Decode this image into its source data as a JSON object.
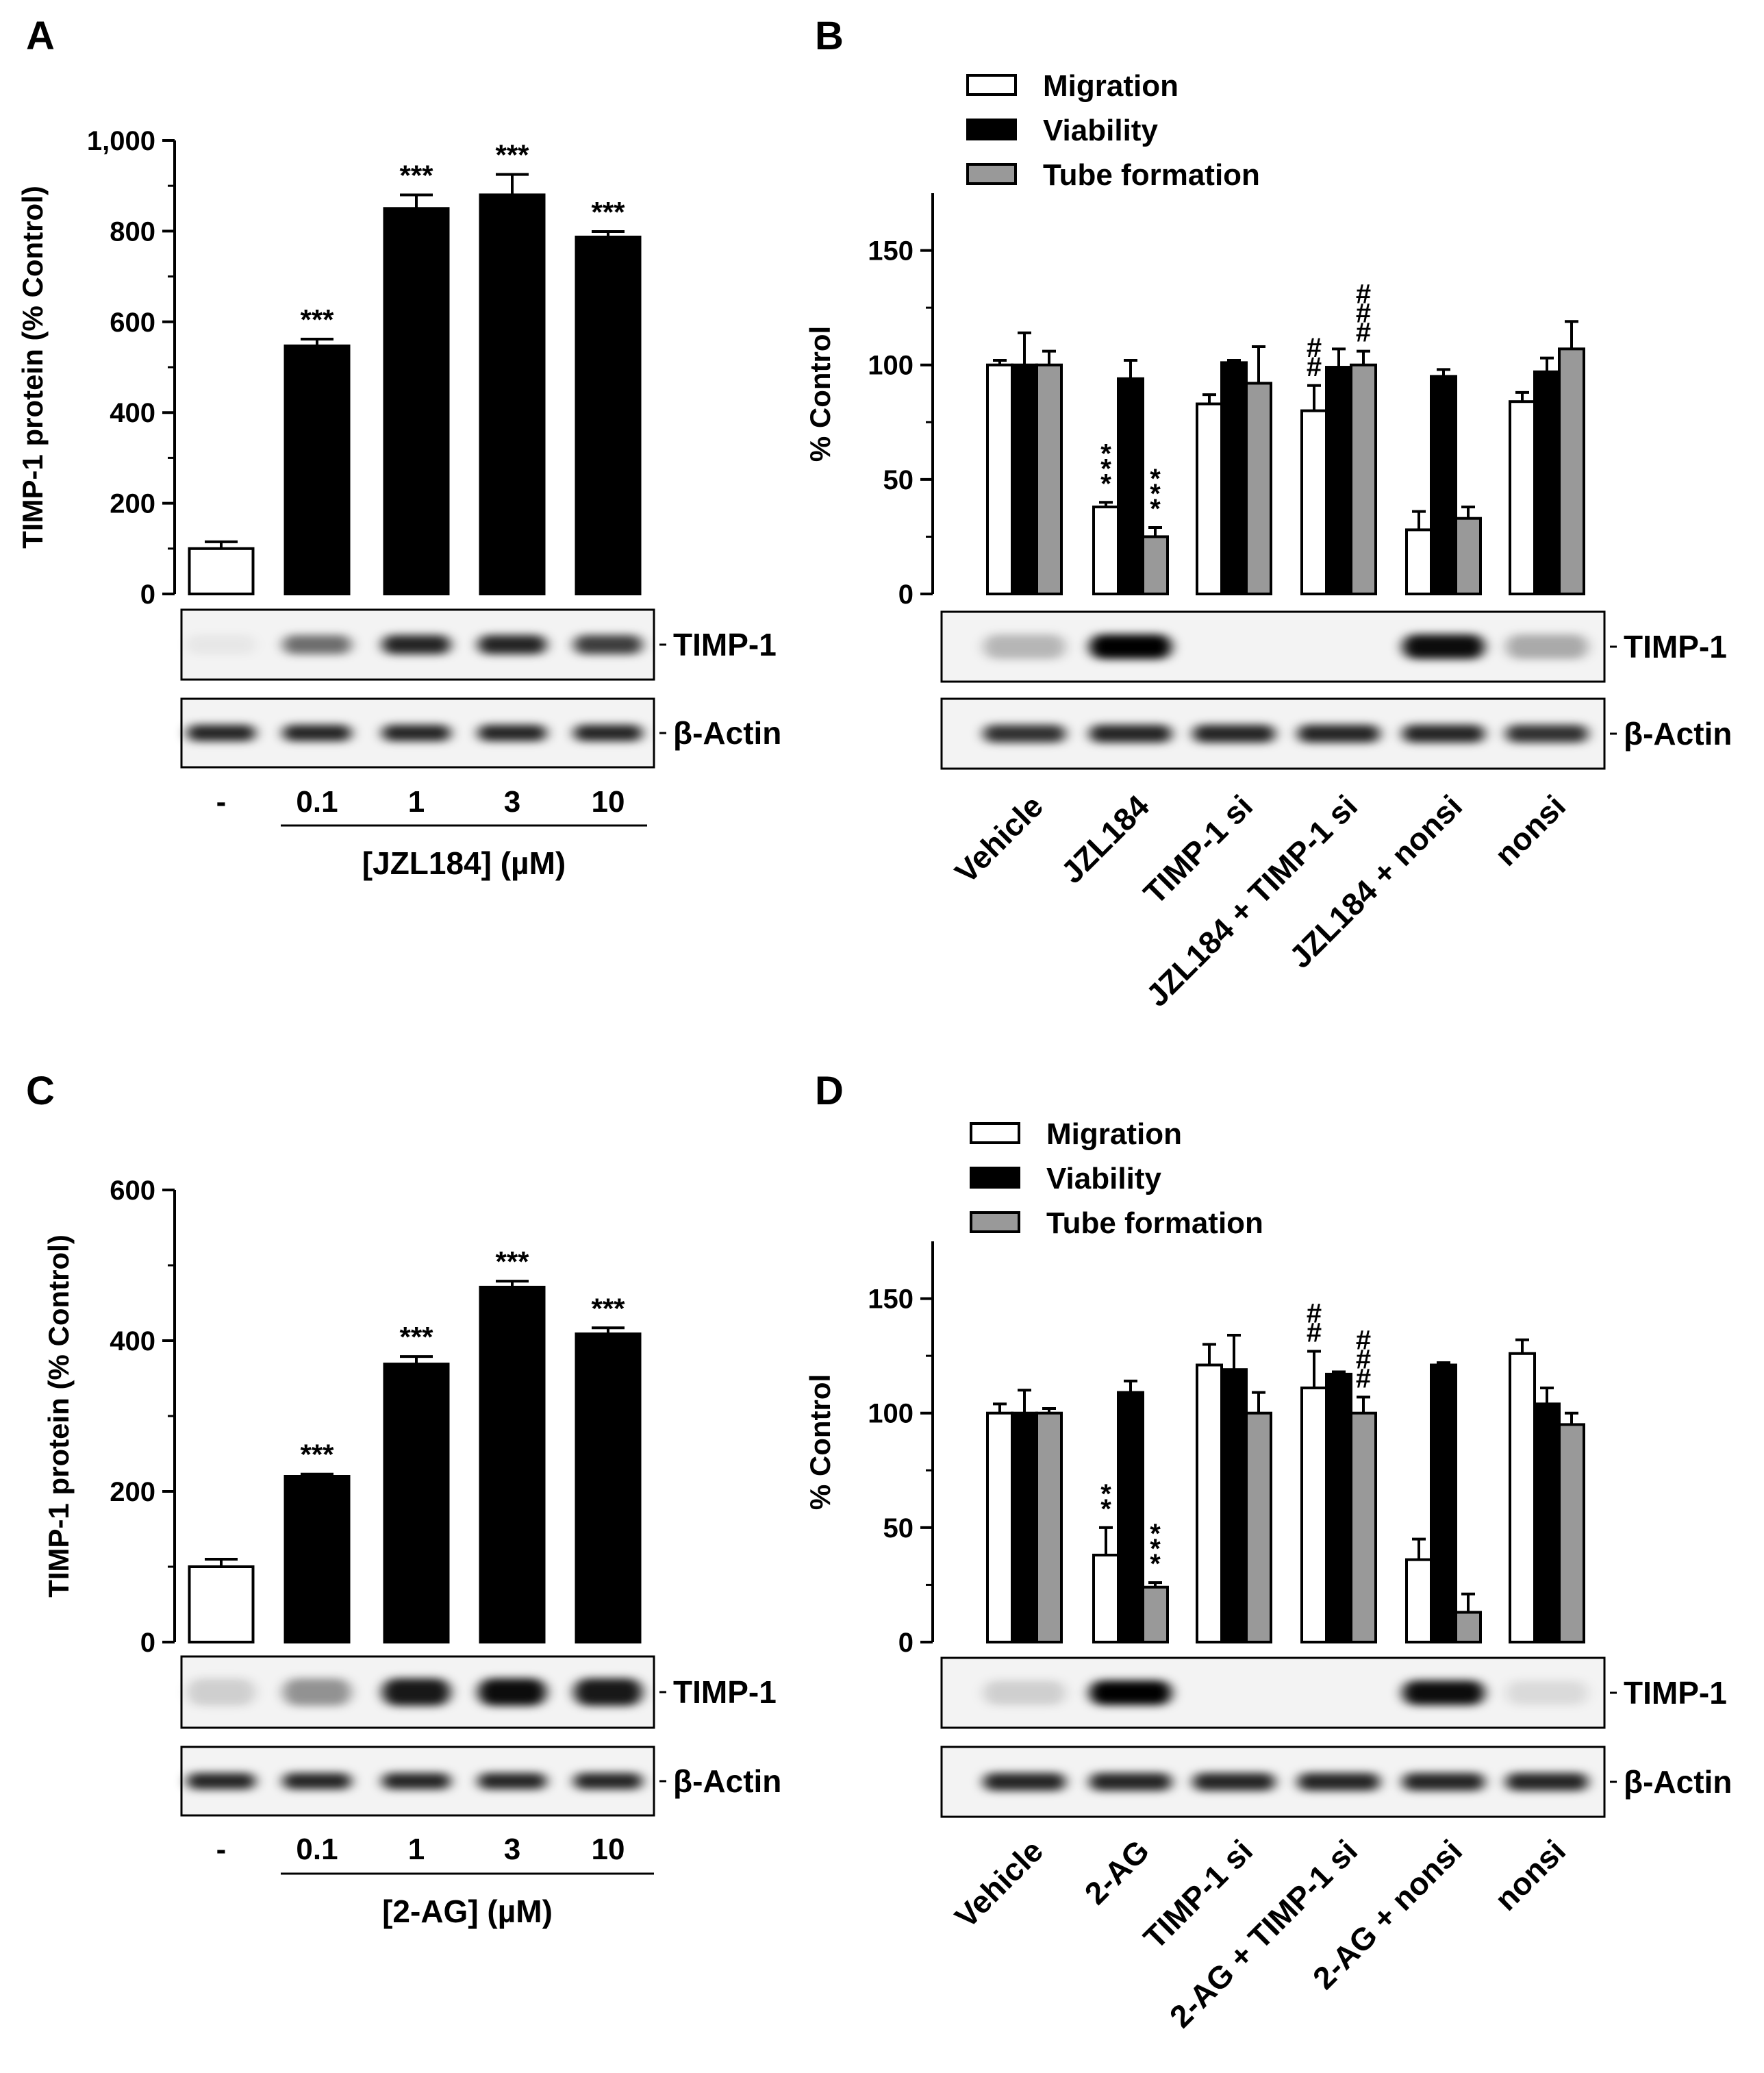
{
  "chart_data": [
    {
      "panel": "A",
      "type": "bar",
      "ylabel": "TIMP-1 protein  (% Control)",
      "ylim": [
        0,
        1000
      ],
      "yticks": [
        0,
        200,
        400,
        600,
        800,
        1000
      ],
      "ytick_labels": [
        "0",
        "200",
        "400",
        "600",
        "800",
        "1,000"
      ],
      "categories": [
        "-",
        "0.1",
        "1",
        "3",
        "10"
      ],
      "xlabel": "[JZL184] (µM)",
      "series": [
        {
          "name": "TIMP-1 protein",
          "values": [
            100,
            547,
            850,
            880,
            787
          ],
          "errors": [
            15,
            15,
            30,
            45,
            12
          ],
          "fills": [
            "#ffffff",
            "#000000",
            "#000000",
            "#000000",
            "#000000"
          ]
        }
      ],
      "annotations": [
        "",
        "***",
        "***",
        "***",
        "***"
      ],
      "blots": [
        {
          "label": "TIMP-1",
          "intensity": [
            0.05,
            0.55,
            0.85,
            0.85,
            0.75
          ]
        },
        {
          "label": "β-Actin",
          "intensity": [
            0.85,
            0.85,
            0.85,
            0.85,
            0.85
          ]
        }
      ]
    },
    {
      "panel": "B",
      "type": "bar",
      "ylabel": "% Control",
      "ylim": [
        0,
        175
      ],
      "yticks": [
        0,
        50,
        100,
        150
      ],
      "ytick_labels": [
        "0",
        "50",
        "100",
        "150"
      ],
      "categories": [
        "Vehicle",
        "JZL184",
        "TIMP-1 si",
        "JZL184 + TIMP-1 si",
        "JZL184 + nonsi",
        "nonsi"
      ],
      "series": [
        {
          "name": "Migration",
          "color": "#ffffff",
          "values": [
            100,
            38,
            83,
            80,
            28,
            84
          ],
          "errors": [
            2,
            2,
            4,
            11,
            8,
            4
          ]
        },
        {
          "name": "Viability",
          "color": "#000000",
          "values": [
            100,
            94,
            101,
            99,
            95,
            97
          ],
          "errors": [
            14,
            8,
            1,
            8,
            3,
            6
          ]
        },
        {
          "name": "Tube formation",
          "color": "#999999",
          "values": [
            100,
            25,
            92,
            100,
            33,
            107
          ],
          "errors": [
            6,
            4,
            16,
            6,
            5,
            12
          ]
        }
      ],
      "annotations": [
        {
          "category": 1,
          "series": 0,
          "text": "***"
        },
        {
          "category": 1,
          "series": 2,
          "text": "***"
        },
        {
          "category": 3,
          "series": 0,
          "text": "##"
        },
        {
          "category": 3,
          "series": 2,
          "text": "###"
        }
      ],
      "blots": [
        {
          "label": "TIMP-1",
          "intensity": [
            0.25,
            1.0,
            0,
            0,
            0.95,
            0.3
          ]
        },
        {
          "label": "β-Actin",
          "intensity": [
            0.8,
            0.85,
            0.85,
            0.85,
            0.85,
            0.8
          ]
        }
      ]
    },
    {
      "panel": "C",
      "type": "bar",
      "ylabel": "TIMP-1 protein  (% Control)",
      "ylim": [
        0,
        600
      ],
      "yticks": [
        0,
        200,
        400,
        600
      ],
      "ytick_labels": [
        "0",
        "200",
        "400",
        "600"
      ],
      "categories": [
        "-",
        "0.1",
        "1",
        "3",
        "10"
      ],
      "xlabel": "[2-AG] (µM)",
      "series": [
        {
          "name": "TIMP-1 protein",
          "values": [
            100,
            220,
            369,
            471,
            409
          ],
          "errors": [
            10,
            3,
            10,
            8,
            8
          ],
          "fills": [
            "#ffffff",
            "#000000",
            "#000000",
            "#000000",
            "#000000"
          ]
        }
      ],
      "annotations": [
        "",
        "***",
        "***",
        "***",
        "***"
      ],
      "blots": [
        {
          "label": "TIMP-1",
          "intensity": [
            0.15,
            0.4,
            0.9,
            0.95,
            0.9
          ]
        },
        {
          "label": "β-Actin",
          "intensity": [
            0.85,
            0.85,
            0.85,
            0.85,
            0.85
          ]
        }
      ]
    },
    {
      "panel": "D",
      "type": "bar",
      "ylabel": "% Control",
      "ylim": [
        0,
        175
      ],
      "yticks": [
        0,
        50,
        100,
        150
      ],
      "ytick_labels": [
        "0",
        "50",
        "100",
        "150"
      ],
      "categories": [
        "Vehicle",
        "2-AG",
        "TIMP-1 si",
        "2-AG + TIMP-1 si",
        "2-AG + nonsi",
        "nonsi"
      ],
      "series": [
        {
          "name": "Migration",
          "color": "#ffffff",
          "values": [
            100,
            38,
            121,
            111,
            36,
            126
          ],
          "errors": [
            4,
            12,
            9,
            16,
            9,
            6
          ]
        },
        {
          "name": "Viability",
          "color": "#000000",
          "values": [
            100,
            109,
            119,
            117,
            121,
            104
          ],
          "errors": [
            10,
            5,
            15,
            1,
            1,
            7
          ]
        },
        {
          "name": "Tube formation",
          "color": "#999999",
          "values": [
            100,
            24,
            100,
            100,
            13,
            95
          ],
          "errors": [
            2,
            2,
            9,
            7,
            8,
            5
          ]
        }
      ],
      "annotations": [
        {
          "category": 1,
          "series": 0,
          "text": "**"
        },
        {
          "category": 1,
          "series": 2,
          "text": "***"
        },
        {
          "category": 3,
          "series": 0,
          "text": "##"
        },
        {
          "category": 3,
          "series": 2,
          "text": "###"
        }
      ],
      "blots": [
        {
          "label": "TIMP-1",
          "intensity": [
            0.15,
            1.0,
            0,
            0,
            0.95,
            0.1
          ]
        },
        {
          "label": "β-Actin",
          "intensity": [
            0.85,
            0.85,
            0.85,
            0.85,
            0.85,
            0.85
          ]
        }
      ]
    }
  ]
}
